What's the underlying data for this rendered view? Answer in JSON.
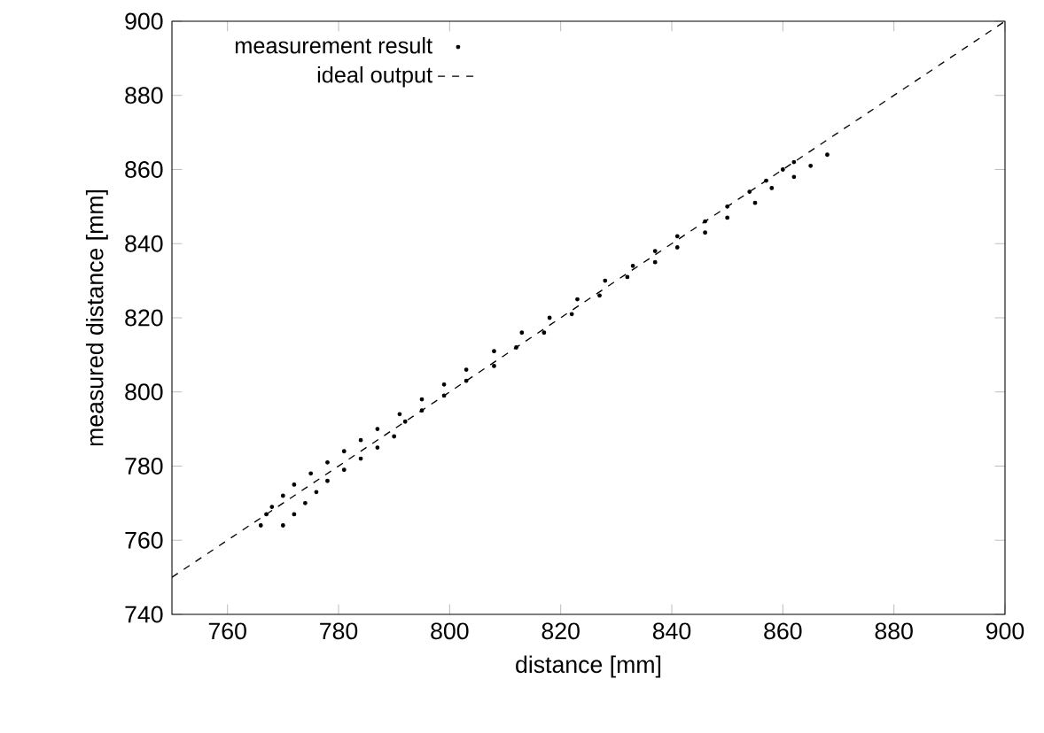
{
  "chart_data": {
    "type": "scatter",
    "xlabel": "distance [mm]",
    "ylabel": "measured distance [mm]",
    "xlim": [
      750,
      900
    ],
    "ylim": [
      740,
      900
    ],
    "xticks": [
      760,
      780,
      800,
      820,
      840,
      860,
      880,
      900
    ],
    "yticks": [
      740,
      760,
      780,
      800,
      820,
      840,
      860,
      880,
      900
    ],
    "legend": "top left",
    "grid": false,
    "series": [
      {
        "name": "measurement result",
        "marker": "circle",
        "color": "#000000",
        "x": [
          766,
          770,
          767,
          772,
          768,
          774,
          770,
          776,
          772,
          778,
          775,
          781,
          778,
          784,
          781,
          787,
          784,
          790,
          787,
          792,
          791,
          795,
          795,
          799,
          799,
          803,
          803,
          808,
          808,
          812,
          813,
          817,
          818,
          822,
          823,
          827,
          828,
          832,
          833,
          837,
          837,
          841,
          841,
          846,
          846,
          850,
          850,
          855,
          854,
          858,
          857,
          862,
          860,
          865,
          862,
          868
        ],
        "values": [
          764,
          764,
          767,
          767,
          769,
          770,
          772,
          773,
          775,
          776,
          778,
          779,
          781,
          782,
          784,
          785,
          787,
          788,
          790,
          792,
          794,
          795,
          798,
          799,
          802,
          803,
          806,
          807,
          811,
          812,
          816,
          816,
          820,
          821,
          825,
          826,
          830,
          831,
          834,
          835,
          838,
          839,
          842,
          843,
          846,
          847,
          850,
          851,
          854,
          855,
          857,
          858,
          860,
          861,
          862,
          864
        ]
      },
      {
        "name": "ideal output",
        "type": "line",
        "line_style": "dashed",
        "marker": "none",
        "color": "#000000",
        "x": [
          750,
          900
        ],
        "values": [
          750,
          900
        ]
      }
    ]
  }
}
